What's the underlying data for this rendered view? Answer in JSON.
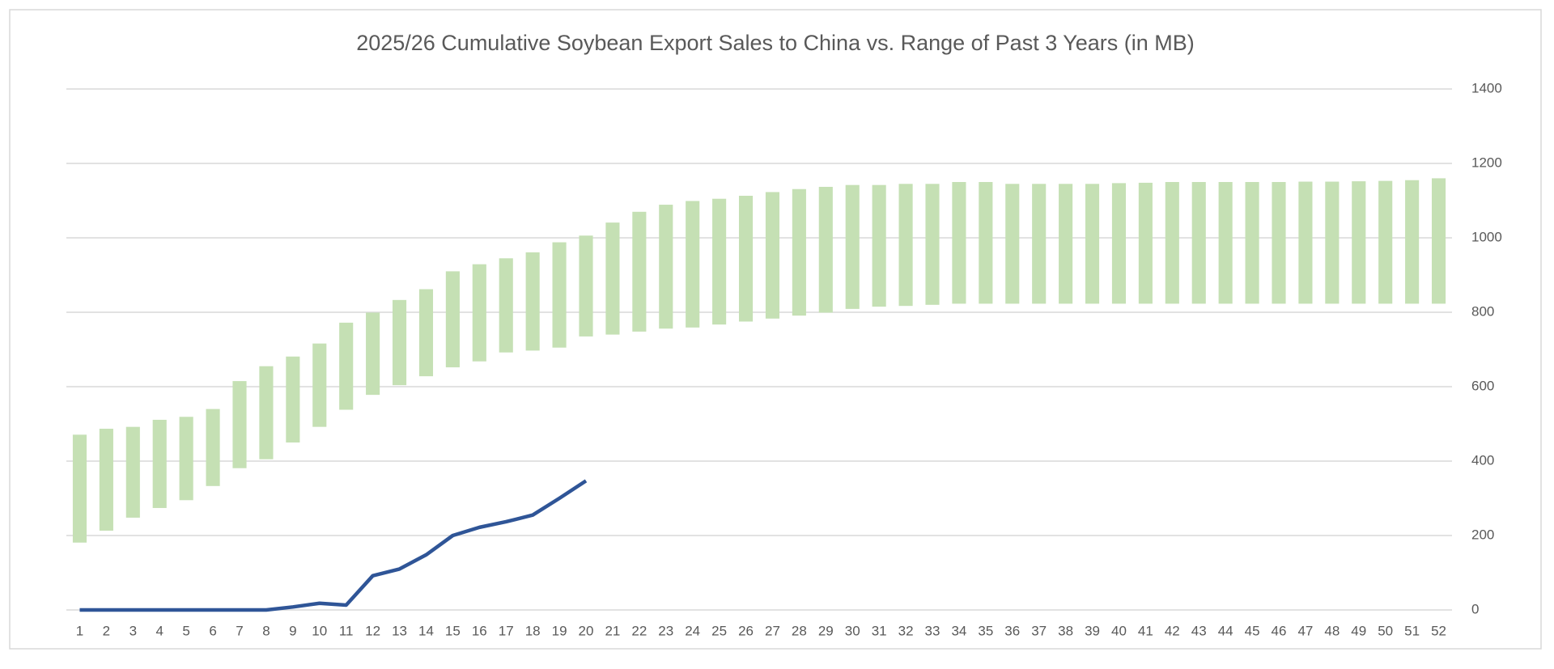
{
  "chart_data": {
    "type": "combo",
    "title": "2025/26 Cumulative Soybean Export Sales to China vs. Range of Past 3 Years (in MB)",
    "categories": [
      1,
      2,
      3,
      4,
      5,
      6,
      7,
      8,
      9,
      10,
      11,
      12,
      13,
      14,
      15,
      16,
      17,
      18,
      19,
      20,
      21,
      22,
      23,
      24,
      25,
      26,
      27,
      28,
      29,
      30,
      31,
      32,
      33,
      34,
      35,
      36,
      37,
      38,
      39,
      40,
      41,
      42,
      43,
      44,
      45,
      46,
      47,
      48,
      49,
      50,
      51,
      52
    ],
    "range": {
      "color": "#c5e0b4",
      "low": [
        181,
        213,
        248,
        274,
        295,
        333,
        381,
        405,
        450,
        492,
        538,
        578,
        604,
        628,
        652,
        668,
        692,
        697,
        705,
        735,
        740,
        748,
        756,
        759,
        767,
        775,
        783,
        791,
        799,
        809,
        815,
        817,
        820,
        823,
        823,
        823,
        823,
        823,
        823,
        823,
        823,
        823,
        823,
        823,
        823,
        823,
        823,
        823,
        823,
        823,
        823,
        823
      ],
      "high": [
        471,
        487,
        492,
        511,
        519,
        540,
        615,
        655,
        681,
        716,
        772,
        799,
        833,
        862,
        910,
        929,
        945,
        961,
        988,
        1006,
        1041,
        1070,
        1089,
        1099,
        1105,
        1113,
        1123,
        1131,
        1137,
        1142,
        1142,
        1145,
        1145,
        1150,
        1150,
        1145,
        1145,
        1145,
        1145,
        1147,
        1148,
        1150,
        1150,
        1150,
        1150,
        1150,
        1151,
        1151,
        1152,
        1153,
        1155,
        1160
      ]
    },
    "line": {
      "color": "#2f5597",
      "values": [
        0,
        0,
        0,
        0,
        0,
        0,
        0,
        0,
        8,
        18,
        13,
        92,
        110,
        148,
        200,
        222,
        237,
        255,
        300,
        347,
        null,
        null,
        null,
        null,
        null,
        null,
        null,
        null,
        null,
        null,
        null,
        null,
        null,
        null,
        null,
        null,
        null,
        null,
        null,
        null,
        null,
        null,
        null,
        null,
        null,
        null,
        null,
        null,
        null,
        null,
        null,
        null
      ]
    },
    "ylim": [
      0,
      1400
    ],
    "yticks": [
      0,
      200,
      400,
      600,
      800,
      1000,
      1200,
      1400
    ],
    "y_axis_side": "right",
    "grid": true
  }
}
